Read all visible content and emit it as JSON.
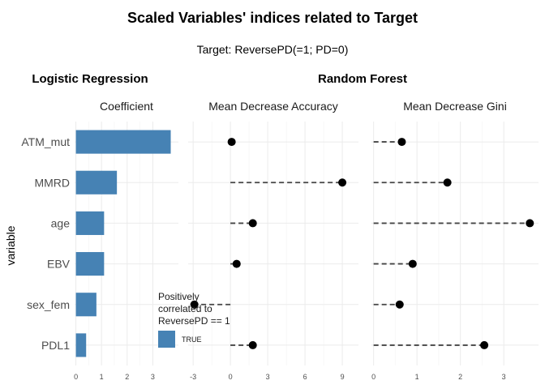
{
  "title": "Scaled Variables' indices related to Target",
  "subtitle": "Target: ReversePD(=1; PD=0)",
  "sections": {
    "left": "Logistic Regression",
    "right": "Random Forest"
  },
  "y_axis_label": "variable",
  "legend": {
    "title_lines": [
      "Positively",
      "correlated to",
      "ReversePD == 1"
    ],
    "key_label": "TRUE",
    "color": "#4682b4"
  },
  "chart_data": [
    {
      "type": "bar",
      "facet": "Coefficient",
      "categories": [
        "ATM_mut",
        "MMRD",
        "age",
        "EBV",
        "sex_fem",
        "PDL1"
      ],
      "values": [
        3.7,
        1.6,
        1.1,
        1.1,
        0.8,
        0.4
      ],
      "xlim": [
        -0.05,
        4.0
      ],
      "xticks": [
        0,
        1,
        2,
        3
      ],
      "color": "#4682b4",
      "grid": true
    },
    {
      "type": "lollipop",
      "facet": "Mean Decrease Accuracy",
      "categories": [
        "ATM_mut",
        "MMRD",
        "age",
        "EBV",
        "sex_fem",
        "PDL1"
      ],
      "values": [
        0.1,
        9.0,
        1.8,
        0.5,
        -2.9,
        1.8
      ],
      "xlim": [
        -3.4,
        10.3
      ],
      "xticks": [
        -3,
        0,
        3,
        6,
        9
      ],
      "grid": true
    },
    {
      "type": "lollipop",
      "facet": "Mean Decrease Gini",
      "categories": [
        "ATM_mut",
        "MMRD",
        "age",
        "EBV",
        "sex_fem",
        "PDL1"
      ],
      "values": [
        0.65,
        1.7,
        3.6,
        0.9,
        0.6,
        2.55
      ],
      "xlim": [
        -0.05,
        3.8
      ],
      "xticks": [
        0,
        1,
        2,
        3
      ],
      "grid": true
    }
  ]
}
